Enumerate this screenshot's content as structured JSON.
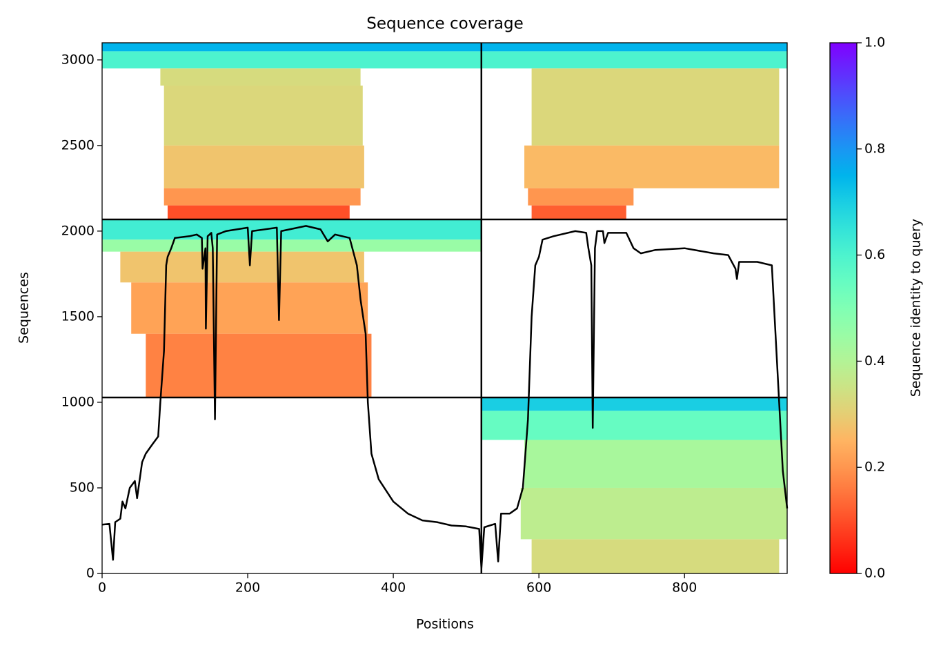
{
  "chart_data": {
    "type": "coverage",
    "title": "Sequence coverage",
    "xlabel": "Positions",
    "ylabel": "Sequences",
    "colorbar_label": "Sequence identity to query",
    "colormap": "rainbow_r",
    "clim": [
      0,
      1
    ],
    "cticks": [
      {
        "value": 0,
        "label": "0.0"
      },
      {
        "value": 0.2,
        "label": "0.2"
      },
      {
        "value": 0.4,
        "label": "0.4"
      },
      {
        "value": 0.6,
        "label": "0.6"
      },
      {
        "value": 0.8,
        "label": "0.8"
      },
      {
        "value": 1,
        "label": "1.0"
      }
    ],
    "xlim": [
      0,
      941
    ],
    "ylim": [
      0,
      3100
    ],
    "xticks": [
      0,
      200,
      400,
      600,
      800
    ],
    "yticks": [
      0,
      500,
      1000,
      1500,
      2000,
      2500,
      3000
    ],
    "boundaries_x": [
      521
    ],
    "boundaries_y": [
      1028,
      2068
    ],
    "bands": [
      {
        "x": [
          0,
          521
        ],
        "y": [
          3050,
          3100
        ],
        "identity": 0.75
      },
      {
        "x": [
          0,
          521
        ],
        "y": [
          2950,
          3050
        ],
        "identity": 0.6
      },
      {
        "x": [
          80,
          355
        ],
        "y": [
          2850,
          2950
        ],
        "identity": 0.33
      },
      {
        "x": [
          85,
          358
        ],
        "y": [
          2500,
          2850
        ],
        "identity": 0.32
      },
      {
        "x": [
          85,
          360
        ],
        "y": [
          2250,
          2500
        ],
        "identity": 0.28
      },
      {
        "x": [
          85,
          355
        ],
        "y": [
          2150,
          2250
        ],
        "identity": 0.2
      },
      {
        "x": [
          90,
          340
        ],
        "y": [
          2068,
          2150
        ],
        "identity": 0.1
      },
      {
        "x": [
          521,
          941
        ],
        "y": [
          3050,
          3100
        ],
        "identity": 0.75
      },
      {
        "x": [
          521,
          941
        ],
        "y": [
          2950,
          3050
        ],
        "identity": 0.6
      },
      {
        "x": [
          590,
          930
        ],
        "y": [
          2500,
          2950
        ],
        "identity": 0.32
      },
      {
        "x": [
          580,
          930
        ],
        "y": [
          2250,
          2500
        ],
        "identity": 0.26
      },
      {
        "x": [
          585,
          730
        ],
        "y": [
          2150,
          2250
        ],
        "identity": 0.2
      },
      {
        "x": [
          590,
          720
        ],
        "y": [
          2068,
          2150
        ],
        "identity": 0.12
      },
      {
        "x": [
          0,
          521
        ],
        "y": [
          1950,
          2068
        ],
        "identity": 0.62
      },
      {
        "x": [
          0,
          521
        ],
        "y": [
          1880,
          1950
        ],
        "identity": 0.45
      },
      {
        "x": [
          25,
          360
        ],
        "y": [
          1700,
          1880
        ],
        "identity": 0.28
      },
      {
        "x": [
          40,
          365
        ],
        "y": [
          1400,
          1700
        ],
        "identity": 0.22
      },
      {
        "x": [
          60,
          370
        ],
        "y": [
          1028,
          1400
        ],
        "identity": 0.17
      },
      {
        "x": [
          521,
          941
        ],
        "y": [
          950,
          1028
        ],
        "identity": 0.7
      },
      {
        "x": [
          521,
          941
        ],
        "y": [
          780,
          950
        ],
        "identity": 0.55
      },
      {
        "x": [
          580,
          941
        ],
        "y": [
          500,
          780
        ],
        "identity": 0.42
      },
      {
        "x": [
          575,
          941
        ],
        "y": [
          200,
          500
        ],
        "identity": 0.38
      },
      {
        "x": [
          590,
          930
        ],
        "y": [
          0,
          200
        ],
        "identity": 0.33
      }
    ],
    "coverage": {
      "color": "#000000",
      "x": [
        0,
        10,
        15,
        18,
        25,
        28,
        32,
        38,
        45,
        48,
        55,
        60,
        65,
        70,
        77,
        80,
        85,
        88,
        90,
        95,
        100,
        120,
        130,
        137,
        138,
        142,
        142.5,
        145,
        150,
        152,
        155,
        158,
        170,
        200,
        203,
        206,
        240,
        243,
        246,
        280,
        300,
        310,
        320,
        340,
        350,
        355,
        362,
        365,
        370,
        380,
        400,
        420,
        440,
        460,
        480,
        500,
        518,
        521,
        525,
        540,
        544,
        548,
        560,
        570,
        578,
        585,
        590,
        595,
        600,
        605,
        620,
        650,
        665,
        668,
        672,
        674,
        677,
        680,
        688,
        690,
        695,
        720,
        730,
        740,
        760,
        800,
        840,
        860,
        870,
        872,
        875,
        900,
        920,
        925,
        930,
        935,
        941
      ],
      "values": [
        285,
        290,
        80,
        300,
        320,
        420,
        380,
        500,
        540,
        440,
        650,
        700,
        730,
        760,
        800,
        1000,
        1300,
        1800,
        1850,
        1900,
        1960,
        1970,
        1980,
        1960,
        1780,
        1900,
        1430,
        1970,
        1990,
        1900,
        900,
        1980,
        2000,
        2020,
        1800,
        2000,
        2020,
        1480,
        2000,
        2030,
        2010,
        1940,
        1980,
        1960,
        1800,
        1600,
        1400,
        1000,
        700,
        550,
        420,
        350,
        310,
        300,
        280,
        275,
        260,
        30,
        270,
        290,
        70,
        350,
        350,
        380,
        500,
        900,
        1500,
        1800,
        1850,
        1950,
        1970,
        2000,
        1990,
        1900,
        1800,
        850,
        1900,
        2000,
        2000,
        1930,
        1990,
        1990,
        1900,
        1870,
        1890,
        1900,
        1870,
        1860,
        1780,
        1720,
        1820,
        1820,
        1800,
        1400,
        1000,
        600,
        380
      ]
    }
  }
}
